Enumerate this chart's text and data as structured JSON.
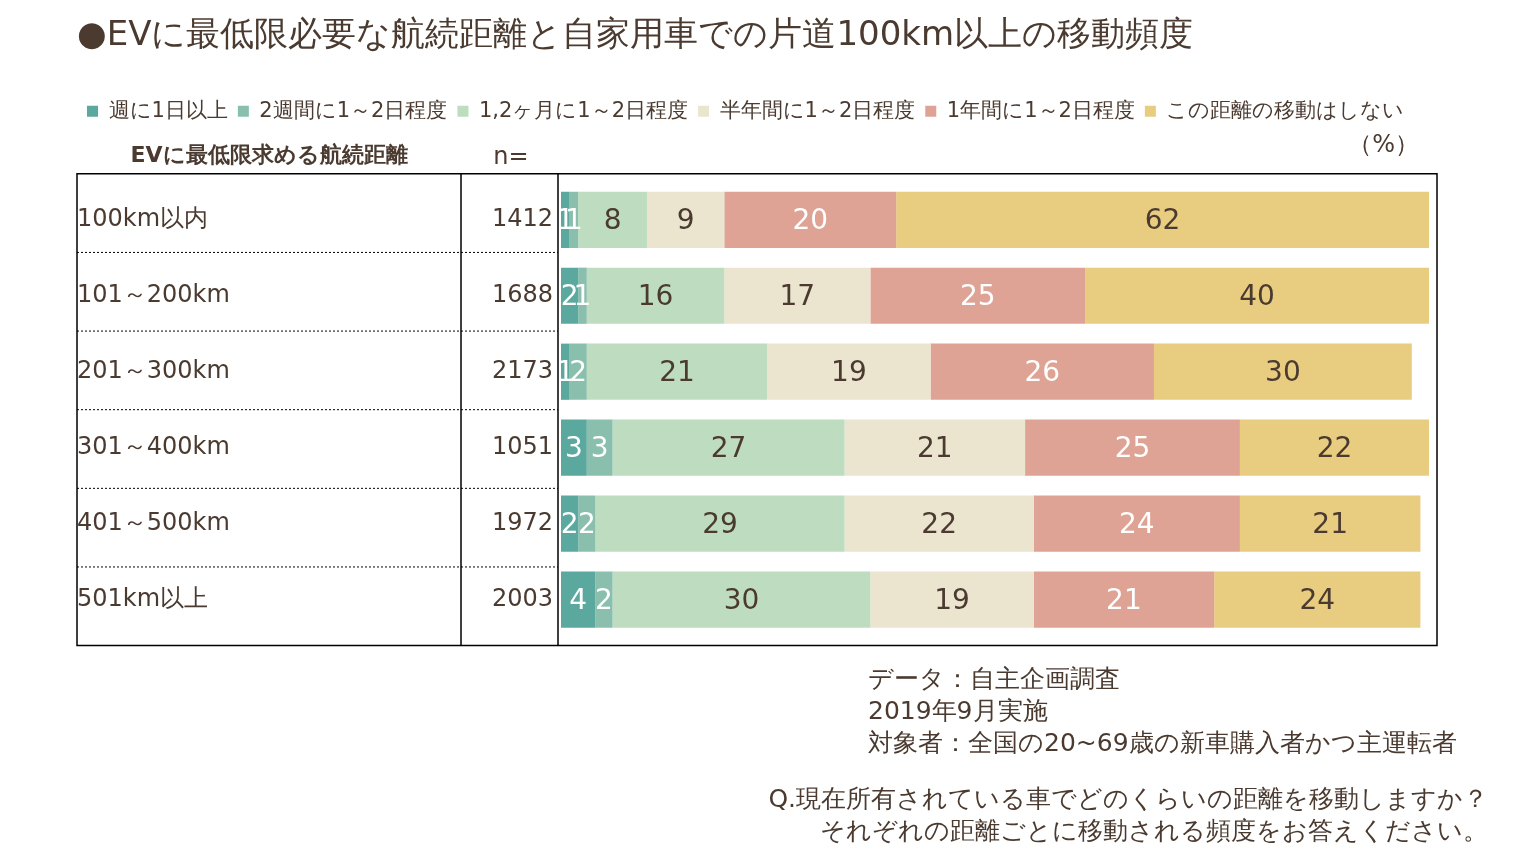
{
  "chart_data": {
    "type": "bar",
    "orientation": "horizontal",
    "stacked": true,
    "data_labels": true,
    "legend": "top",
    "title": "●EVに最低限必要な航続距離と自家用車での片道100km以上の移動頻度",
    "ylabel": "EVに最低限求める航続距離",
    "categories": [
      "100km以内",
      "101～200km",
      "201～300km",
      "301～400km",
      "401～500km",
      "501km以上"
    ],
    "series": [
      {
        "name": "週に1日以上",
        "color": "#5ba89e",
        "values": [
          1,
          2,
          1,
          3,
          2,
          4
        ]
      },
      {
        "name": "2週間に1～2日程度",
        "color": "#8abfae",
        "values": [
          1,
          1,
          2,
          3,
          2,
          2
        ]
      },
      {
        "name": "1,2ヶ月に1～2日程度",
        "color": "#bedcc0",
        "values": [
          8,
          16,
          21,
          27,
          29,
          30
        ]
      },
      {
        "name": "半年間に1～2日程度",
        "color": "#ebe5cf",
        "values": [
          9,
          17,
          19,
          21,
          22,
          19
        ]
      },
      {
        "name": "1年間に1～2日程度",
        "color": "#dea394",
        "values": [
          20,
          25,
          26,
          25,
          24,
          21
        ]
      },
      {
        "name": "この距離の移動はしない",
        "color": "#e8cc80",
        "values": [
          62,
          40,
          30,
          22,
          21,
          24
        ]
      }
    ],
    "annotations": [
      "n=",
      "（%）",
      "1412",
      "1688",
      "2173",
      "1051",
      "1972",
      "2003",
      "データ：自主企画調査",
      "2019年9月実施",
      "対象者：全国の20~69歳の新車購入者かつ主運転者",
      "Q.現在所有されている車でどのくらいの距離を移動しますか？",
      "それぞれの距離ごとに移動される頻度をお答えください。"
    ]
  }
}
